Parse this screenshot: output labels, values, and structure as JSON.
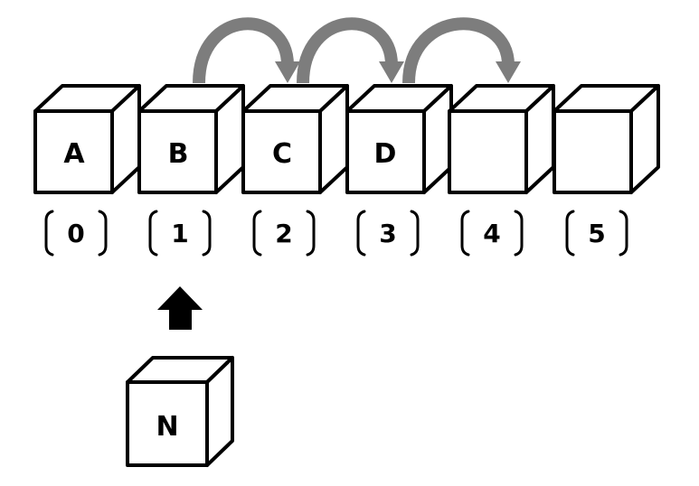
{
  "array": {
    "cells": [
      {
        "value": "A",
        "index": "0"
      },
      {
        "value": "B",
        "index": "1"
      },
      {
        "value": "C",
        "index": "2"
      },
      {
        "value": "D",
        "index": "3"
      },
      {
        "value": "",
        "index": "4"
      },
      {
        "value": "",
        "index": "5"
      }
    ],
    "shifts": [
      {
        "from": "1",
        "to": "2"
      },
      {
        "from": "2",
        "to": "3"
      },
      {
        "from": "3",
        "to": "4"
      }
    ]
  },
  "new_element": {
    "value": "N",
    "insert_index": "1"
  },
  "colors": {
    "shift_arrow": "#7d7d7d",
    "insert_arrow": "#000000",
    "outline": "#000000"
  }
}
